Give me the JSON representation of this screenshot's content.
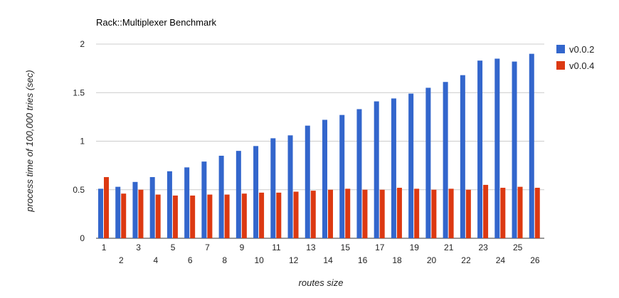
{
  "chart_data": {
    "type": "bar",
    "title": "Rack::Multiplexer Benchmark",
    "xlabel": "routes size",
    "ylabel": "process time of 100,000 tries (sec)",
    "ylim": [
      0,
      2
    ],
    "yticks": [
      "0",
      "0.5",
      "1",
      "1.5",
      "2"
    ],
    "grid": true,
    "legend_position": "right",
    "categories": [
      "1",
      "2",
      "3",
      "4",
      "5",
      "6",
      "7",
      "8",
      "9",
      "10",
      "11",
      "12",
      "13",
      "14",
      "15",
      "16",
      "17",
      "18",
      "19",
      "20",
      "21",
      "22",
      "23",
      "24",
      "25",
      "26"
    ],
    "series": [
      {
        "name": "v0.0.2",
        "color": "#3366cc",
        "values": [
          0.51,
          0.53,
          0.58,
          0.63,
          0.69,
          0.73,
          0.79,
          0.85,
          0.9,
          0.95,
          1.03,
          1.06,
          1.16,
          1.22,
          1.27,
          1.33,
          1.41,
          1.44,
          1.49,
          1.55,
          1.61,
          1.68,
          1.83,
          1.85,
          1.82,
          1.9
        ]
      },
      {
        "name": "v0.0.4",
        "color": "#dc3912",
        "values": [
          0.63,
          0.46,
          0.5,
          0.45,
          0.44,
          0.44,
          0.45,
          0.45,
          0.46,
          0.47,
          0.47,
          0.48,
          0.49,
          0.5,
          0.51,
          0.5,
          0.5,
          0.52,
          0.51,
          0.5,
          0.51,
          0.5,
          0.55,
          0.52,
          0.53,
          0.52
        ]
      }
    ]
  }
}
